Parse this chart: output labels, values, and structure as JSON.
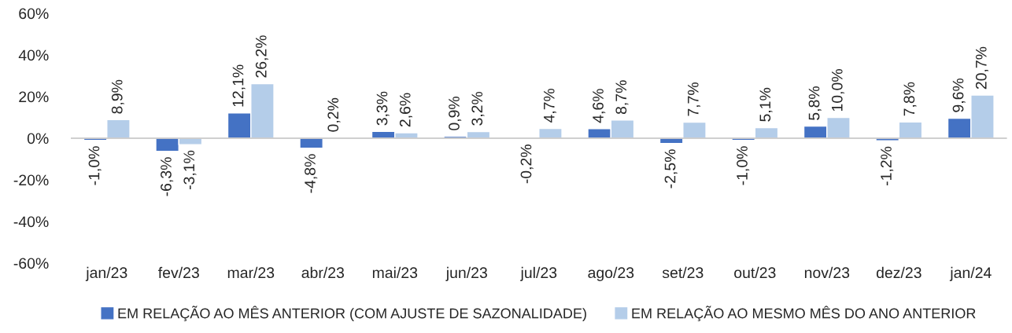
{
  "chart_data": {
    "type": "bar",
    "categories": [
      "jan/23",
      "fev/23",
      "mar/23",
      "abr/23",
      "mai/23",
      "jun/23",
      "jul/23",
      "ago/23",
      "set/23",
      "out/23",
      "nov/23",
      "dez/23",
      "jan/24"
    ],
    "series": [
      {
        "name": "EM RELAÇÃO AO MÊS ANTERIOR (COM AJUSTE DE SAZONALIDADE)",
        "color": "#4472c4",
        "values": [
          -1.0,
          -6.3,
          12.1,
          -4.8,
          3.3,
          0.9,
          -0.2,
          4.6,
          -2.5,
          -1.0,
          5.8,
          -1.2,
          9.6
        ],
        "value_labels": [
          "-1,0%",
          "-6,3%",
          "12,1%",
          "-4,8%",
          "3,3%",
          "0,9%",
          "-0,2%",
          "4,6%",
          "-2,5%",
          "-1,0%",
          "5,8%",
          "-1,2%",
          "9,6%"
        ]
      },
      {
        "name": "EM RELAÇÃO AO MESMO MÊS DO ANO ANTERIOR",
        "color": "#b4cde9",
        "values": [
          8.9,
          -3.1,
          26.2,
          0.2,
          2.6,
          3.2,
          4.7,
          8.7,
          7.7,
          5.1,
          10.0,
          7.8,
          20.7
        ],
        "value_labels": [
          "8,9%",
          "-3,1%",
          "26,2%",
          "0,2%",
          "2,6%",
          "3,2%",
          "4,7%",
          "8,7%",
          "7,7%",
          "5,1%",
          "10,0%",
          "7,8%",
          "20,7%"
        ]
      }
    ],
    "ylim": [
      -60,
      60
    ],
    "yticks": [
      {
        "value": -60,
        "label": "-60%"
      },
      {
        "value": -40,
        "label": "-40%"
      },
      {
        "value": -20,
        "label": "-20%"
      },
      {
        "value": 0,
        "label": "0%"
      },
      {
        "value": 20,
        "label": "20%"
      },
      {
        "value": 40,
        "label": "40%"
      },
      {
        "value": 60,
        "label": "60%"
      }
    ],
    "ref_lines": [
      {
        "axis": "y",
        "value": 0,
        "color": "#bfbfbf"
      }
    ],
    "grid": false,
    "legend": "bottom"
  }
}
